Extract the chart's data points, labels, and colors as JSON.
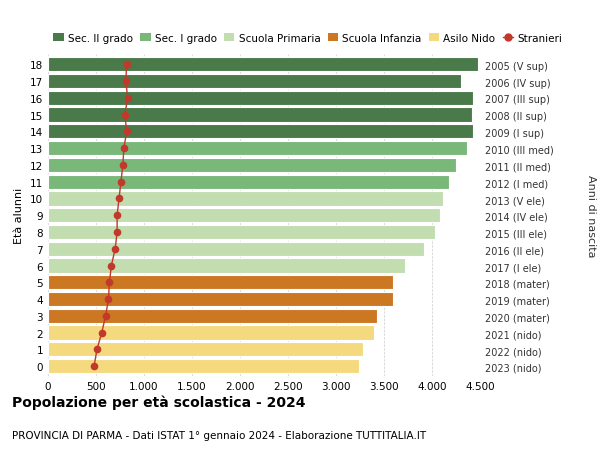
{
  "ages": [
    18,
    17,
    16,
    15,
    14,
    13,
    12,
    11,
    10,
    9,
    8,
    7,
    6,
    5,
    4,
    3,
    2,
    1,
    0
  ],
  "year_labels": [
    "2005 (V sup)",
    "2006 (IV sup)",
    "2007 (III sup)",
    "2008 (II sup)",
    "2009 (I sup)",
    "2010 (III med)",
    "2011 (II med)",
    "2012 (I med)",
    "2013 (V ele)",
    "2014 (IV ele)",
    "2015 (III ele)",
    "2016 (II ele)",
    "2017 (I ele)",
    "2018 (mater)",
    "2019 (mater)",
    "2020 (mater)",
    "2021 (nido)",
    "2022 (nido)",
    "2023 (nido)"
  ],
  "bar_values": [
    4480,
    4300,
    4430,
    4420,
    4430,
    4360,
    4250,
    4180,
    4110,
    4080,
    4030,
    3920,
    3720,
    3590,
    3590,
    3430,
    3400,
    3280,
    3240
  ],
  "bar_colors": [
    "#4a7a4a",
    "#4a7a4a",
    "#4a7a4a",
    "#4a7a4a",
    "#4a7a4a",
    "#7ab87a",
    "#7ab87a",
    "#7ab87a",
    "#c2ddb0",
    "#c2ddb0",
    "#c2ddb0",
    "#c2ddb0",
    "#c2ddb0",
    "#cc7722",
    "#cc7722",
    "#cc7722",
    "#f5d97e",
    "#f5d97e",
    "#f5d97e"
  ],
  "stranieri_values": [
    820,
    810,
    830,
    800,
    820,
    790,
    780,
    760,
    740,
    720,
    720,
    700,
    660,
    640,
    630,
    600,
    560,
    510,
    480
  ],
  "legend_labels": [
    "Sec. II grado",
    "Sec. I grado",
    "Scuola Primaria",
    "Scuola Infanzia",
    "Asilo Nido",
    "Stranieri"
  ],
  "legend_colors": [
    "#4a7a4a",
    "#7ab87a",
    "#c2ddb0",
    "#cc7722",
    "#f5d97e",
    "#c0392b"
  ],
  "title": "Popolazione per età scolastica - 2024",
  "subtitle": "PROVINCIA DI PARMA - Dati ISTAT 1° gennaio 2024 - Elaborazione TUTTITALIA.IT",
  "xlabel_right": "Anni di nascita",
  "ylabel": "Età alunni",
  "xlim": [
    0,
    4500
  ],
  "xticks": [
    0,
    500,
    1000,
    1500,
    2000,
    2500,
    3000,
    3500,
    4000,
    4500
  ],
  "background_color": "#ffffff",
  "grid_color": "#cccccc",
  "stranieri_color": "#c0392b",
  "bar_height": 0.85
}
